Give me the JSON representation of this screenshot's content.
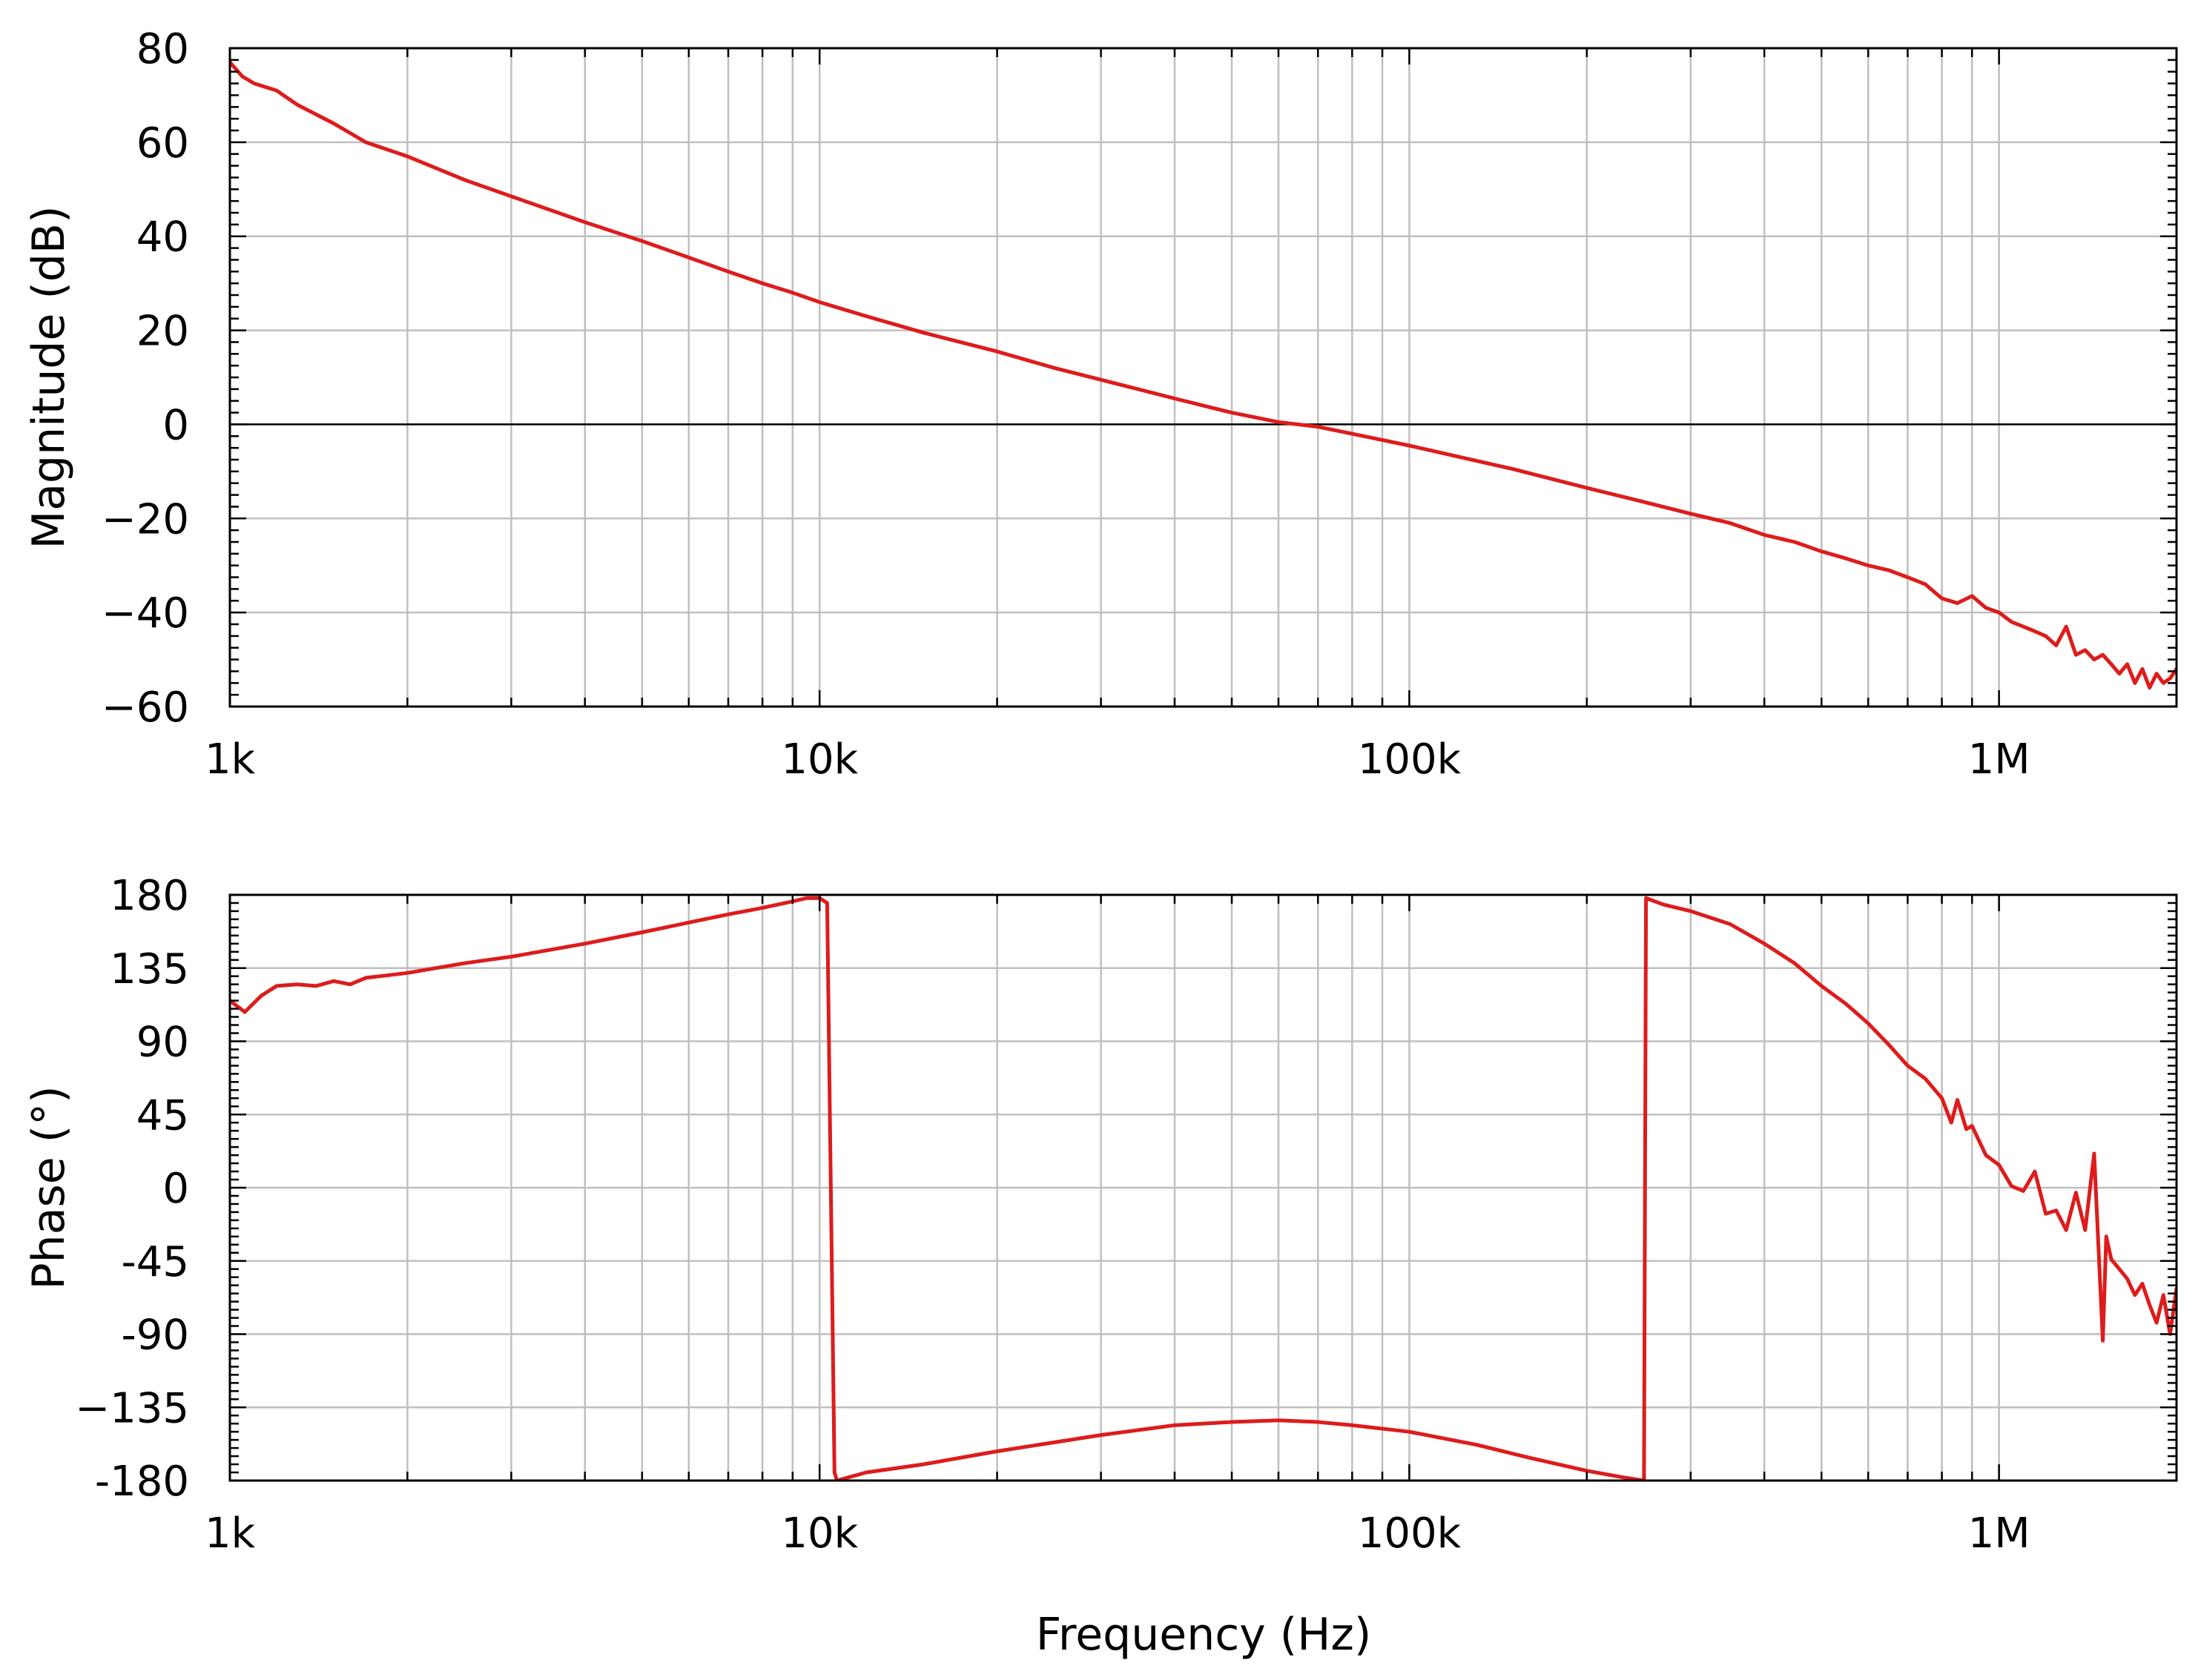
{
  "xlabel": "Frequency (Hz)",
  "colors": {
    "series": "#dd1c1c",
    "grid": "#bfbfbf",
    "axis": "#000000",
    "zero_line": "#000000"
  },
  "chart_data": [
    {
      "type": "line",
      "title": "",
      "ylabel": "Magnitude (dB)",
      "xscale": "log",
      "xlim": [
        1000,
        2000000
      ],
      "ylim": [
        -60,
        80
      ],
      "yticks": [
        80,
        60,
        40,
        20,
        0,
        -20,
        -40,
        -60
      ],
      "ytick_labels": [
        "80",
        "60",
        "40",
        "20",
        "0",
        "−20",
        "−40",
        "−60"
      ],
      "xticks": [
        1000,
        10000,
        100000,
        1000000
      ],
      "xtick_labels": [
        "1k",
        "10k",
        "100k",
        "1M"
      ],
      "grid": true,
      "zero_line": true,
      "series": [
        {
          "x": [
            1000,
            1050,
            1100,
            1200,
            1300,
            1500,
            1700,
            2000,
            2500,
            3000,
            4000,
            5000,
            6000,
            7000,
            8000,
            9000,
            10000,
            12000,
            15000,
            20000,
            25000,
            30000,
            40000,
            50000,
            60000,
            70000,
            80000,
            100000,
            150000,
            200000,
            250000,
            300000,
            350000,
            400000,
            450000,
            500000,
            550000,
            600000,
            650000,
            700000,
            750000,
            800000,
            850000,
            900000,
            950000,
            1000000,
            1050000,
            1100000,
            1150000,
            1200000,
            1250000,
            1300000,
            1350000,
            1400000,
            1450000,
            1500000,
            1550000,
            1600000,
            1650000,
            1700000,
            1750000,
            1800000,
            1850000,
            1900000,
            1950000,
            2000000
          ],
          "y": [
            77,
            74,
            72.5,
            71,
            68,
            64,
            60,
            57,
            52,
            48.5,
            43,
            39,
            35.5,
            32.5,
            30,
            28,
            26,
            23,
            19.5,
            15.5,
            12,
            9.5,
            5.5,
            2.5,
            0.5,
            -0.5,
            -2,
            -4.5,
            -9.5,
            -13.5,
            -16.5,
            -19,
            -21,
            -23.5,
            -25,
            -27,
            -28.5,
            -30,
            -31,
            -32.5,
            -34,
            -37,
            -38,
            -36.5,
            -39,
            -40,
            -42,
            -43,
            -44,
            -45,
            -47,
            -43,
            -49,
            -48,
            -50,
            -49,
            -51,
            -53,
            -51,
            -55,
            -52,
            -56,
            -53,
            -55,
            -54,
            -52
          ]
        }
      ]
    },
    {
      "type": "line",
      "title": "",
      "ylabel": "Phase (°)",
      "xscale": "log",
      "xlim": [
        1000,
        2000000
      ],
      "ylim": [
        -180,
        180
      ],
      "yticks": [
        180,
        135,
        90,
        45,
        0,
        -45,
        -90,
        -135,
        -180
      ],
      "ytick_labels": [
        "180",
        "135",
        "90",
        "45",
        "0",
        "-45",
        "-90",
        "−135",
        "-180"
      ],
      "xticks": [
        1000,
        10000,
        100000,
        1000000
      ],
      "xtick_labels": [
        "1k",
        "10k",
        "100k",
        "1M"
      ],
      "grid": true,
      "series": [
        {
          "x": [
            1000,
            1060,
            1130,
            1200,
            1300,
            1400,
            1500,
            1600,
            1700,
            1800,
            2000,
            2500,
            3000,
            4000,
            5000,
            6000,
            7000,
            8000,
            9000,
            9500,
            10000,
            10300,
            10600,
            10700,
            12000,
            15000,
            20000,
            30000,
            40000,
            50000,
            60000,
            70000,
            80000,
            100000,
            130000,
            160000,
            200000,
            230000,
            250000,
            252000,
            270000,
            300000,
            350000,
            400000,
            450000,
            500000,
            550000,
            600000,
            650000,
            700000,
            750000,
            800000,
            830000,
            850000,
            880000,
            900000,
            950000,
            1000000,
            1050000,
            1100000,
            1150000,
            1200000,
            1250000,
            1300000,
            1350000,
            1400000,
            1450000,
            1500000,
            1520000,
            1550000,
            1600000,
            1650000,
            1700000,
            1750000,
            1800000,
            1850000,
            1900000,
            1950000,
            2000000
          ],
          "y": [
            115,
            108,
            118,
            124,
            125,
            124,
            127,
            125,
            129,
            130,
            132,
            138,
            142,
            150,
            157,
            163,
            168,
            172,
            176,
            178,
            178,
            175,
            -175,
            -180,
            -175,
            -170,
            -162,
            -152,
            -146,
            -144,
            -143,
            -144,
            -146,
            -150,
            -158,
            -166,
            -174,
            -178,
            -180,
            178,
            174,
            170,
            162,
            150,
            138,
            124,
            113,
            101,
            88,
            75,
            67,
            55,
            40,
            54,
            36,
            38,
            20,
            14,
            1,
            -2,
            10,
            -16,
            -14,
            -26,
            -3,
            -26,
            21,
            -94,
            -30,
            -44,
            -50,
            -56,
            -66,
            -59,
            -72,
            -83,
            -66,
            -90,
            -62
          ]
        }
      ]
    }
  ]
}
